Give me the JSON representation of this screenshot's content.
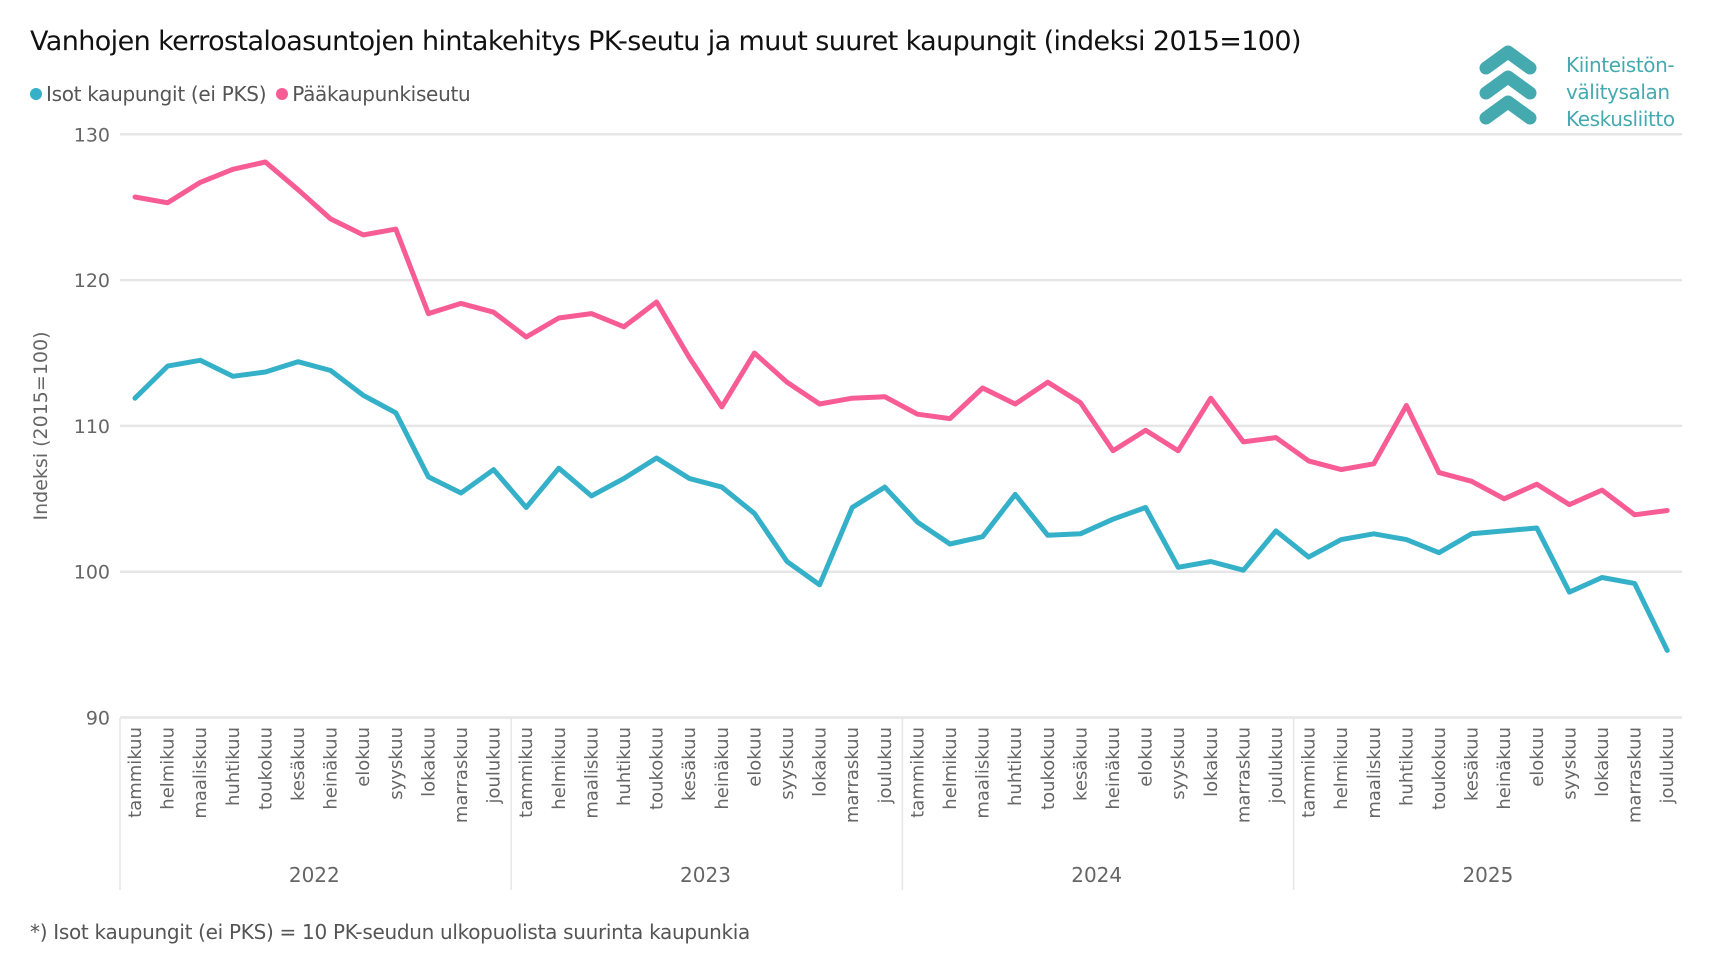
{
  "header": {
    "title": "Vanhojen kerrostaloasuntojen hintakehitys PK-seutu ja muut suuret kaupungit (indeksi 2015=100)"
  },
  "logo": {
    "icon": "chevron-stack-icon",
    "lines": [
      "Kiinteistön-",
      "välitysalan",
      "Keskusliitto"
    ],
    "color": "#45AAB0"
  },
  "footnote": "*) Isot kaupungit (ei PKS) = 10 PK-seudun ulkopuolista suurinta kaupunkia",
  "chart_data": {
    "type": "line",
    "title": "Vanhojen kerrostaloasuntojen hintakehitys PK-seutu ja muut suuret kaupungit (indeksi 2015=100)",
    "xlabel": "",
    "ylabel": "Indeksi (2015=100)",
    "ylim": [
      90,
      130
    ],
    "yticks": [
      90,
      100,
      110,
      120,
      130
    ],
    "grid": true,
    "legend_position": "top-left",
    "months": [
      "tammikuu",
      "helmikuu",
      "maaliskuu",
      "huhtikuu",
      "toukokuu",
      "kesäkuu",
      "heinäkuu",
      "elokuu",
      "syyskuu",
      "lokakuu",
      "marraskuu",
      "joulukuu"
    ],
    "years": [
      "2022",
      "2023",
      "2024",
      "2025"
    ],
    "series": [
      {
        "name": "Isot kaupungit (ei PKS)",
        "color": "#34B0C8",
        "values": [
          111.9,
          114.1,
          114.5,
          113.4,
          113.7,
          114.4,
          113.8,
          112.1,
          110.9,
          106.5,
          105.4,
          107.0,
          104.4,
          107.1,
          105.2,
          106.4,
          107.8,
          106.4,
          105.8,
          104.0,
          100.7,
          99.1,
          104.4,
          105.8,
          103.4,
          101.9,
          102.4,
          105.3,
          102.5,
          102.6,
          103.6,
          104.4,
          100.3,
          100.7,
          100.1,
          102.8,
          101.0,
          102.2,
          102.6,
          102.2,
          101.3,
          102.6,
          102.8,
          103.0,
          98.6,
          99.6,
          99.2,
          94.6
        ]
      },
      {
        "name": "Pääkaupunkiseutu",
        "color": "#F75D94",
        "values": [
          125.7,
          125.3,
          126.7,
          127.6,
          128.1,
          126.2,
          124.2,
          123.1,
          123.5,
          117.7,
          118.4,
          117.8,
          116.1,
          117.4,
          117.7,
          116.8,
          118.5,
          114.7,
          111.3,
          115.0,
          113.0,
          111.5,
          111.9,
          112.0,
          110.8,
          110.5,
          112.6,
          111.5,
          113.0,
          111.6,
          108.3,
          109.7,
          108.3,
          111.9,
          108.9,
          109.2,
          107.6,
          107.0,
          107.4,
          111.4,
          106.8,
          106.2,
          105.0,
          106.0,
          104.6,
          105.6,
          103.9,
          104.2
        ]
      }
    ]
  }
}
